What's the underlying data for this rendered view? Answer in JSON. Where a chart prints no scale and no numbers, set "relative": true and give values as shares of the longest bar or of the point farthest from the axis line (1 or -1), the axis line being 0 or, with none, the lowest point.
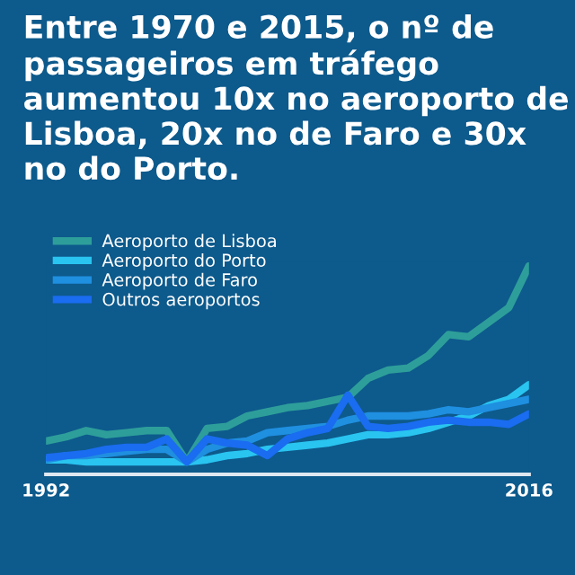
{
  "chart_data": {
    "type": "line",
    "title": "Entre 1970 e 2015, o nº de passageiros em tráfego aumentou 10x no aeroporto de Lisboa, 20x no de Faro e 30x no do Porto.",
    "relative": true,
    "legend": "top left",
    "grid": false,
    "marker": "none",
    "x": [
      1992,
      1993,
      1994,
      1995,
      1996,
      1997,
      1998,
      1999,
      2000,
      2001,
      2002,
      2003,
      2004,
      2005,
      2006,
      2007,
      2008,
      2009,
      2010,
      2011,
      2012,
      2013,
      2014,
      2015,
      2016
    ],
    "xlim": [
      1992,
      2016
    ],
    "xticks": [
      1992,
      2016
    ],
    "series": [
      {
        "name": "Aeroporto de Lisboa",
        "color": "#2e9e9a",
        "values": [
          0.16,
          0.18,
          0.21,
          0.19,
          0.2,
          0.21,
          0.21,
          0.06,
          0.22,
          0.23,
          0.28,
          0.3,
          0.32,
          0.33,
          0.35,
          0.37,
          0.46,
          0.5,
          0.51,
          0.57,
          0.67,
          0.66,
          0.73,
          0.8,
          1.0
        ]
      },
      {
        "name": "Aeroporto do Porto",
        "color": "#29c4f0",
        "values": [
          0.07,
          0.07,
          0.06,
          0.06,
          0.06,
          0.06,
          0.06,
          0.06,
          0.07,
          0.09,
          0.1,
          0.12,
          0.13,
          0.14,
          0.15,
          0.17,
          0.19,
          0.19,
          0.2,
          0.22,
          0.25,
          0.28,
          0.33,
          0.36,
          0.43
        ]
      },
      {
        "name": "Aeroporto de Faro",
        "color": "#1f8fe0",
        "values": [
          0.07,
          0.09,
          0.09,
          0.1,
          0.11,
          0.12,
          0.12,
          0.06,
          0.12,
          0.15,
          0.16,
          0.2,
          0.21,
          0.22,
          0.23,
          0.26,
          0.28,
          0.28,
          0.28,
          0.29,
          0.31,
          0.3,
          0.32,
          0.34,
          0.36
        ]
      },
      {
        "name": "Outros aeroportos",
        "color": "#1a6cf0",
        "values": [
          0.08,
          0.09,
          0.1,
          0.12,
          0.13,
          0.13,
          0.17,
          0.06,
          0.17,
          0.15,
          0.14,
          0.09,
          0.17,
          0.2,
          0.22,
          0.38,
          0.23,
          0.22,
          0.23,
          0.25,
          0.26,
          0.25,
          0.25,
          0.24,
          0.29
        ]
      }
    ]
  }
}
